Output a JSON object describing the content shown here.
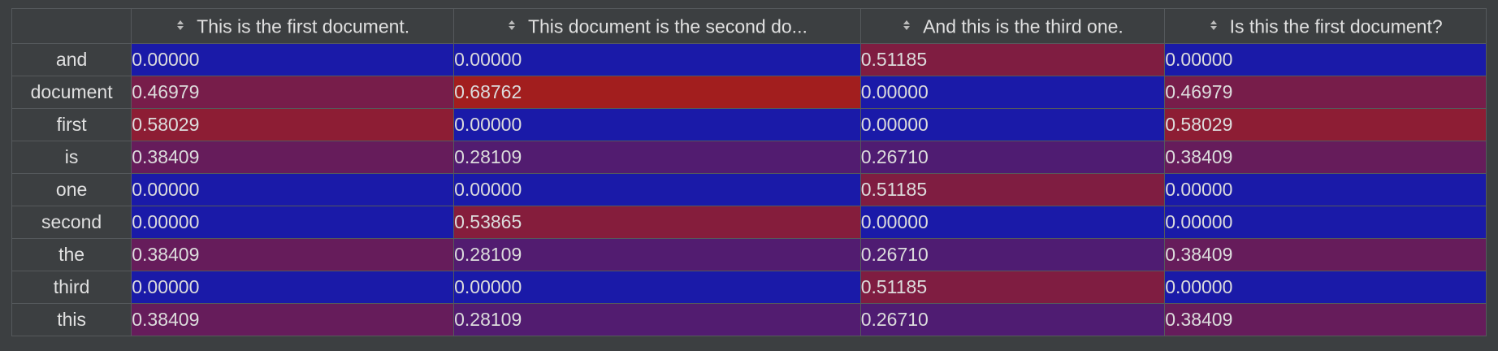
{
  "table": {
    "corner_label": "",
    "columns": [
      "This is the first document.",
      "This document is the second do...",
      "And this is the third one.",
      "Is this the first document?"
    ],
    "column_sort_icon": "sort-updown-icon",
    "rows": [
      {
        "label": "and",
        "values": [
          "0.00000",
          "0.00000",
          "0.51185",
          "0.00000"
        ]
      },
      {
        "label": "document",
        "values": [
          "0.46979",
          "0.68762",
          "0.00000",
          "0.46979"
        ]
      },
      {
        "label": "first",
        "values": [
          "0.58029",
          "0.00000",
          "0.00000",
          "0.58029"
        ]
      },
      {
        "label": "is",
        "values": [
          "0.38409",
          "0.28109",
          "0.26710",
          "0.38409"
        ]
      },
      {
        "label": "one",
        "values": [
          "0.00000",
          "0.00000",
          "0.51185",
          "0.00000"
        ]
      },
      {
        "label": "second",
        "values": [
          "0.00000",
          "0.53865",
          "0.00000",
          "0.00000"
        ]
      },
      {
        "label": "the",
        "values": [
          "0.38409",
          "0.28109",
          "0.26710",
          "0.38409"
        ]
      },
      {
        "label": "third",
        "values": [
          "0.00000",
          "0.00000",
          "0.51185",
          "0.00000"
        ]
      },
      {
        "label": "this",
        "values": [
          "0.38409",
          "0.28109",
          "0.26710",
          "0.38409"
        ]
      }
    ]
  },
  "colors": {
    "background": "#3c3f41",
    "grid_line": "#55595c",
    "header_text": "#e0e0e0",
    "cell_text": "#dcdcdc",
    "heatmap_low": "#1a1aa8",
    "heatmap_high": "#a21e1e"
  },
  "heatmap_scale": {
    "min": 0.0,
    "max": 0.68762
  }
}
